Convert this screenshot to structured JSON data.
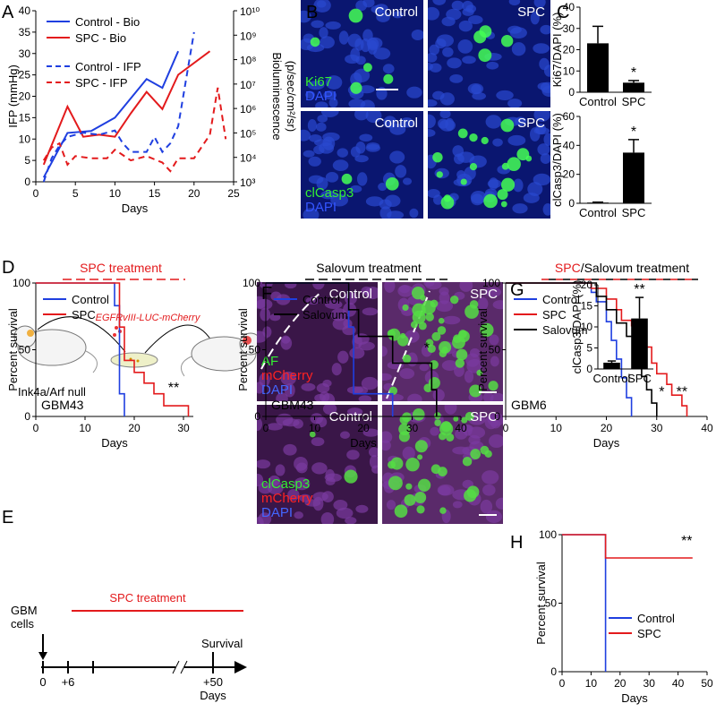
{
  "panel_labels": [
    "A",
    "B",
    "C",
    "D",
    "E",
    "F",
    "G",
    "H"
  ],
  "chart_data": [
    {
      "type": "line",
      "xlabel": "Days",
      "ylabel": "IFP (mmHg)",
      "y2label": [
        "Bioluminescence",
        "(p/sec/cm²/sr)"
      ],
      "xlim": [
        0,
        25
      ],
      "xticks": [
        0,
        5,
        10,
        15,
        20,
        25
      ],
      "ylim": [
        0,
        40
      ],
      "yticks": [
        0,
        5,
        10,
        15,
        20,
        25,
        30,
        35,
        40
      ],
      "y2lim": [
        1000,
        10000000000
      ],
      "y2scale": "log",
      "y2ticks": [
        {
          "value": 1000,
          "label": "10³"
        },
        {
          "value": 10000,
          "label": "10⁴"
        },
        {
          "value": 100000,
          "label": "10⁵"
        },
        {
          "value": 1000000,
          "label": "10⁶"
        },
        {
          "value": 10000000,
          "label": "10⁷"
        },
        {
          "value": 100000000,
          "label": "10⁸"
        },
        {
          "value": 1000000000,
          "label": "10⁹"
        },
        {
          "value": 10000000000,
          "label": "10¹⁰"
        }
      ],
      "series": [
        {
          "name": "Control - Bio",
          "color": "#1f3fe0",
          "dash": false,
          "axis": "y2",
          "x": [
            1,
            4,
            7,
            10,
            14,
            16,
            18
          ],
          "values": [
            1500,
            100000,
            120000,
            420000,
            16000000,
            7000000,
            220000000
          ]
        },
        {
          "name": "SPC - Bio",
          "color": "#e31a1c",
          "dash": false,
          "axis": "y2",
          "x": [
            1,
            4,
            6,
            8,
            10,
            12,
            14,
            16,
            18,
            22
          ],
          "values": [
            5000,
            1200000,
            70000,
            85000,
            70000,
            630000,
            4800000,
            950000,
            24000000,
            220000000
          ]
        },
        {
          "name": "Control - IFP",
          "color": "#1f3fe0",
          "dash": true,
          "x": [
            1,
            2,
            3,
            4,
            6,
            8,
            10,
            11,
            12,
            14,
            15,
            16,
            17,
            18,
            20
          ],
          "values": [
            0,
            5.5,
            8.5,
            10.5,
            11.5,
            11,
            12,
            9,
            7,
            7,
            10.5,
            7,
            9,
            13,
            35
          ]
        },
        {
          "name": "SPC - IFP",
          "color": "#e31a1c",
          "dash": true,
          "x": [
            1,
            2,
            3,
            4,
            5,
            7,
            9,
            10,
            12,
            14,
            16,
            17,
            18,
            20,
            22,
            23,
            24
          ],
          "values": [
            5,
            8,
            9,
            4,
            6,
            5.5,
            5.5,
            7.5,
            5,
            6,
            4.5,
            2.5,
            5.5,
            5.5,
            11,
            22,
            10
          ]
        }
      ]
    },
    {
      "type": "bar",
      "ylabel": "Ki67/DAPI (%)",
      "categories": [
        "Control",
        "SPC"
      ],
      "values": [
        23,
        4.5
      ],
      "errors": [
        8,
        1
      ],
      "color": "#000000",
      "ylim": [
        0,
        40
      ],
      "yticks": [
        0,
        10,
        20,
        30,
        40
      ],
      "annotations": [
        "*"
      ]
    },
    {
      "type": "bar",
      "ylabel": "clCasp3/DAPI (%)",
      "categories": [
        "Control",
        "SPC"
      ],
      "values": [
        0.5,
        35
      ],
      "errors": [
        0.3,
        9
      ],
      "color": "#000000",
      "ylim": [
        0,
        60
      ],
      "yticks": [
        0,
        20,
        40,
        60
      ],
      "annotations": [
        "*"
      ]
    },
    {
      "type": "step",
      "label": "GBM43",
      "treatment": [
        {
          "text": "SPC treatment",
          "color": "#e31a1c"
        }
      ],
      "xlabel": "Days",
      "ylabel": "Percent survival",
      "xlim": [
        0,
        32
      ],
      "xticks": [
        0,
        10,
        20,
        30
      ],
      "ylim": [
        0,
        100
      ],
      "yticks": [
        0,
        50,
        100
      ],
      "series": [
        {
          "name": "Control",
          "color": "#1f3fe0",
          "x": [
            0,
            16,
            17,
            18
          ],
          "values": [
            100,
            83,
            17,
            0
          ]
        },
        {
          "name": "SPC",
          "color": "#e31a1c",
          "x": [
            0,
            17,
            18,
            20,
            22,
            24,
            26,
            31
          ],
          "values": [
            100,
            67,
            42,
            33,
            25,
            17,
            8,
            0
          ]
        }
      ],
      "annotations": [
        "**"
      ]
    },
    {
      "type": "step",
      "label": "GBM43",
      "treatment": [
        {
          "text": "Salovum treatment",
          "color": "#000000"
        }
      ],
      "xlabel": "Days",
      "ylabel": "Percent survival",
      "xlim": [
        0,
        40
      ],
      "xticks": [
        0,
        10,
        20,
        30,
        40
      ],
      "ylim": [
        0,
        100
      ],
      "yticks": [
        0,
        50,
        100
      ],
      "series": [
        {
          "name": "Control",
          "color": "#1f3fe0",
          "x": [
            0,
            17,
            18,
            26
          ],
          "values": [
            100,
            67,
            17,
            0
          ]
        },
        {
          "name": "Salovum",
          "color": "#000000",
          "x": [
            0,
            17,
            19,
            26,
            34,
            35
          ],
          "values": [
            100,
            80,
            60,
            40,
            20,
            0
          ]
        }
      ],
      "annotations": [
        "*"
      ]
    },
    {
      "type": "step",
      "label": "GBM6",
      "treatment": [
        {
          "text": "SPC",
          "color": "#e31a1c"
        },
        {
          "text": "/Salovum treatment",
          "color": "#000000"
        }
      ],
      "xlabel": "Days",
      "ylabel": "Percent survival",
      "xlim": [
        0,
        40
      ],
      "xticks": [
        0,
        10,
        20,
        30,
        40
      ],
      "ylim": [
        0,
        100
      ],
      "yticks": [
        0,
        50,
        100
      ],
      "series": [
        {
          "name": "Control",
          "color": "#1f3fe0",
          "x": [
            0,
            17,
            18,
            20,
            21,
            22,
            23,
            24,
            25
          ],
          "values": [
            100,
            93,
            86,
            71,
            57,
            43,
            29,
            14,
            0
          ]
        },
        {
          "name": "SPC",
          "color": "#e31a1c",
          "x": [
            0,
            17,
            20,
            22,
            23,
            25,
            26,
            28,
            29,
            30,
            32,
            33,
            35,
            36
          ],
          "values": [
            100,
            96,
            88,
            80,
            72,
            68,
            60,
            52,
            40,
            32,
            24,
            16,
            8,
            0
          ]
        },
        {
          "name": "Salovum",
          "color": "#000000",
          "x": [
            0,
            18,
            20,
            22,
            24,
            26,
            27,
            28,
            29,
            30
          ],
          "values": [
            100,
            90,
            80,
            70,
            60,
            50,
            30,
            20,
            10,
            0
          ]
        }
      ],
      "annotations": [
        "*",
        "**"
      ]
    },
    {
      "type": "bar",
      "ylabel": "clCasp3/DAPI (%)",
      "categories": [
        "Control",
        "SPC"
      ],
      "values": [
        1.5,
        12
      ],
      "errors": [
        0.4,
        5
      ],
      "color": "#000000",
      "ylim": [
        0,
        20
      ],
      "yticks": [
        0,
        5,
        10,
        15,
        20
      ],
      "annotations": [
        "**"
      ]
    },
    {
      "type": "step",
      "xlabel": "Days",
      "ylabel": "Percent survival",
      "xlim": [
        0,
        50
      ],
      "xticks": [
        0,
        10,
        20,
        30,
        40,
        50
      ],
      "ylim": [
        0,
        100
      ],
      "yticks": [
        0,
        50,
        100
      ],
      "series": [
        {
          "name": "Control",
          "color": "#1f3fe0",
          "x": [
            0,
            15
          ],
          "values": [
            100,
            0
          ]
        },
        {
          "name": "SPC",
          "color": "#e31a1c",
          "x": [
            0,
            15,
            45
          ],
          "values": [
            100,
            83,
            83
          ]
        }
      ],
      "annotations": [
        "**"
      ]
    }
  ],
  "panel_B": {
    "tiles": [
      {
        "title": "Control",
        "stains": [
          {
            "text": "Ki67",
            "color": "#33ee33"
          },
          {
            "text": "DAPI",
            "color": "#3355ff"
          }
        ]
      },
      {
        "title": "SPC"
      },
      {
        "title": "Control",
        "stains": [
          {
            "text": "clCasp3",
            "color": "#33ee33"
          },
          {
            "text": "DAPI",
            "color": "#3355ff"
          }
        ]
      },
      {
        "title": "SPC"
      }
    ]
  },
  "panel_F": {
    "tiles": [
      {
        "title": "Control",
        "stains": [
          {
            "text": "AF",
            "color": "#33ee33"
          },
          {
            "text": "mCherry",
            "color": "#ff2222"
          },
          {
            "text": "DAPI",
            "color": "#4466ff"
          }
        ]
      },
      {
        "title": "SPC"
      },
      {
        "title": "Control",
        "stains": [
          {
            "text": "clCasp3",
            "color": "#33ee33"
          },
          {
            "text": "mCherry",
            "color": "#ff2222"
          },
          {
            "text": "DAPI",
            "color": "#4466ff"
          }
        ]
      },
      {
        "title": "SPC"
      }
    ]
  },
  "panel_E": {
    "construct": "EGFRvIII-LUC-mCherry",
    "mouse": "Ink4a/Arf null",
    "treatment": "SPC treatment",
    "start": [
      "GBM",
      "cells"
    ],
    "end": "Survival",
    "timeline": [
      "0",
      "+6",
      "+50"
    ],
    "unit": "Days"
  }
}
